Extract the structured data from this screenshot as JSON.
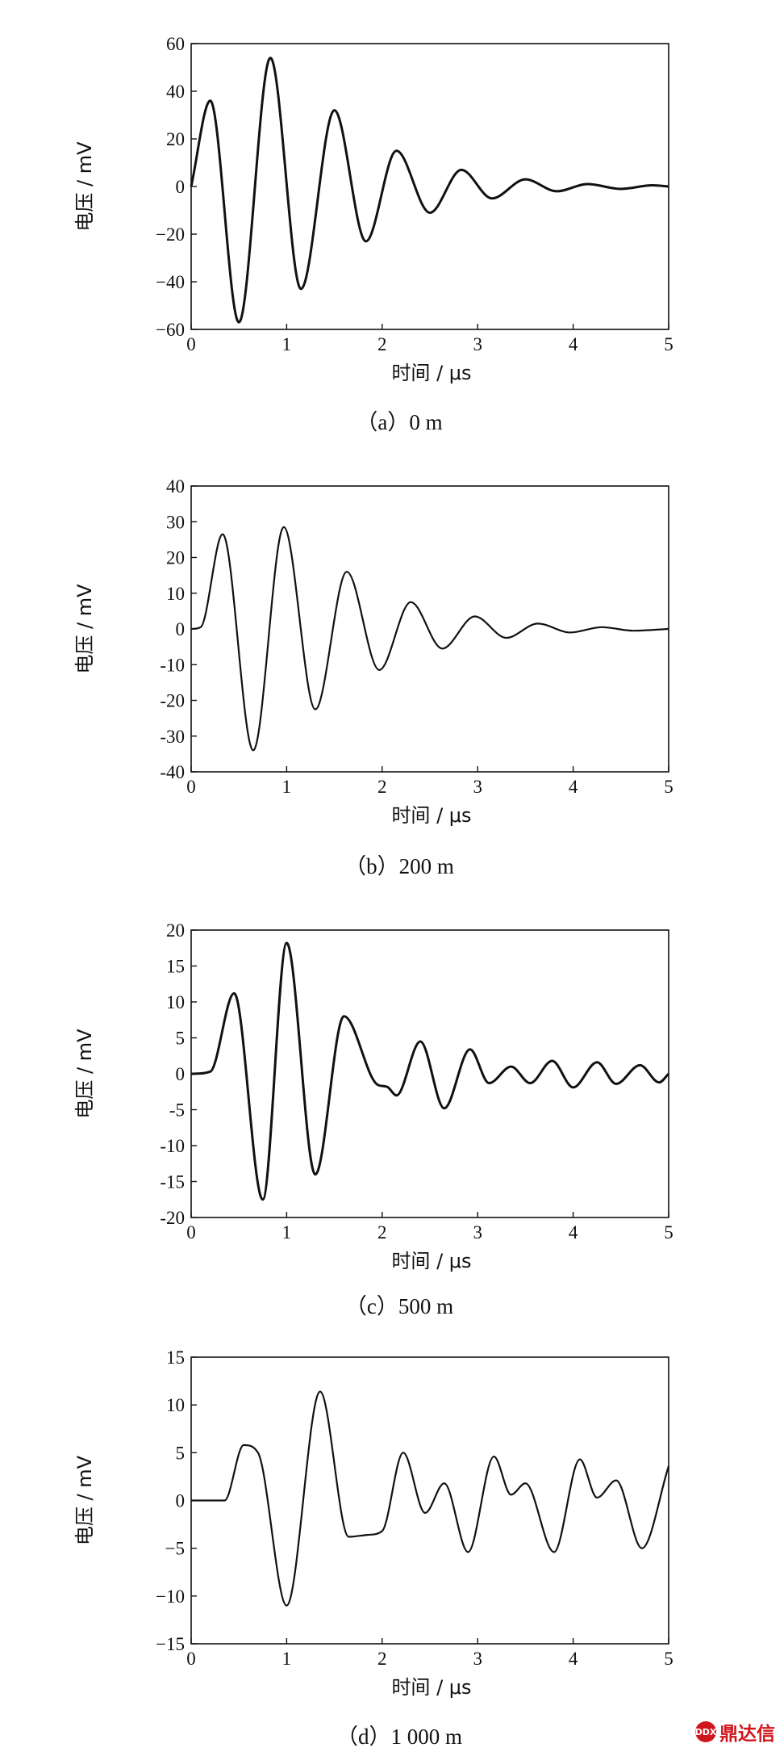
{
  "watermark": {
    "text": "鼎达信",
    "badge": "DDX"
  },
  "chart_data": [
    {
      "type": "line",
      "caption": "（a）0 m",
      "xlabel": "时间 / μs",
      "ylabel": "电压 / mV",
      "xlim": [
        0,
        5
      ],
      "ylim": [
        -60,
        60
      ],
      "xticks": [
        0,
        1,
        2,
        3,
        4,
        5
      ],
      "yticks": [
        -60,
        -40,
        -20,
        0,
        20,
        40,
        60
      ],
      "yticklabels": [
        "−60",
        "−40",
        "−20",
        "0",
        "20",
        "40",
        "60"
      ],
      "series": [
        {
          "x": [
            0,
            0.2,
            0.5,
            0.83,
            1.15,
            1.5,
            1.83,
            2.15,
            2.5,
            2.83,
            3.15,
            3.5,
            3.83,
            4.15,
            4.5,
            4.83,
            5
          ],
          "values": [
            0,
            36,
            -57,
            54,
            -43,
            32,
            -23,
            15,
            -11,
            7,
            -5,
            3,
            -2,
            1,
            -1,
            0.5,
            0
          ]
        }
      ]
    },
    {
      "type": "line",
      "caption": "（b）200 m",
      "xlabel": "时间 / μs",
      "ylabel": "电压 / mV",
      "xlim": [
        0,
        5
      ],
      "ylim": [
        -40,
        40
      ],
      "xticks": [
        0,
        1,
        2,
        3,
        4,
        5
      ],
      "yticks": [
        -40,
        -30,
        -20,
        -10,
        0,
        10,
        20,
        30,
        40
      ],
      "yticklabels": [
        "-40",
        "-30",
        "-20",
        "-10",
        "0",
        "10",
        "20",
        "30",
        "40"
      ],
      "series": [
        {
          "x": [
            0,
            0.1,
            0.33,
            0.65,
            0.97,
            1.3,
            1.63,
            1.97,
            2.3,
            2.63,
            2.97,
            3.3,
            3.63,
            3.97,
            4.3,
            4.63,
            5
          ],
          "values": [
            0,
            0.5,
            26.5,
            -34,
            28.5,
            -22.5,
            16,
            -11.5,
            7.5,
            -5.5,
            3.5,
            -2.5,
            1.5,
            -1,
            0.5,
            -0.5,
            0
          ]
        }
      ]
    },
    {
      "type": "line",
      "caption": "（c）500 m",
      "xlabel": "时间 / μs",
      "ylabel": "电压 / mV",
      "xlim": [
        0,
        5
      ],
      "ylim": [
        -20,
        20
      ],
      "xticks": [
        0,
        1,
        2,
        3,
        4,
        5
      ],
      "yticks": [
        -20,
        -15,
        -10,
        -5,
        0,
        5,
        10,
        15,
        20
      ],
      "yticklabels": [
        "-20",
        "-15",
        "-10",
        "-5",
        "0",
        "5",
        "10",
        "15",
        "20"
      ],
      "series": [
        {
          "x": [
            0,
            0.2,
            0.45,
            0.75,
            1.0,
            1.3,
            1.6,
            1.95,
            2.05,
            2.15,
            2.4,
            2.65,
            2.92,
            3.12,
            3.35,
            3.55,
            3.78,
            4.0,
            4.25,
            4.45,
            4.7,
            4.9,
            5
          ],
          "values": [
            0,
            0.3,
            11.2,
            -17.5,
            18.2,
            -14,
            8,
            -1.5,
            -1.8,
            -3,
            4.5,
            -4.8,
            3.4,
            -1.3,
            1,
            -1.3,
            1.8,
            -1.9,
            1.6,
            -1.4,
            1.2,
            -1.2,
            0
          ]
        }
      ]
    },
    {
      "type": "line",
      "caption": "（d）1 000 m",
      "xlabel": "时间 / μs",
      "ylabel": "电压 / mV",
      "xlim": [
        0,
        5
      ],
      "ylim": [
        -15,
        15
      ],
      "xticks": [
        0,
        1,
        2,
        3,
        4,
        5
      ],
      "yticks": [
        -15,
        -10,
        -5,
        0,
        5,
        10,
        15
      ],
      "yticklabels": [
        "−15",
        "−10",
        "−5",
        "0",
        "5",
        "10",
        "15"
      ],
      "series": [
        {
          "x": [
            0,
            0.35,
            0.55,
            0.7,
            1.0,
            1.35,
            1.65,
            1.85,
            2.0,
            2.22,
            2.45,
            2.65,
            2.9,
            3.17,
            3.35,
            3.5,
            3.8,
            4.07,
            4.25,
            4.45,
            4.72,
            5
          ],
          "values": [
            0,
            0,
            5.8,
            5,
            -11,
            11.4,
            -3.8,
            -3.6,
            -3.2,
            5,
            -1.3,
            1.8,
            -5.4,
            4.6,
            0.6,
            1.8,
            -5.4,
            4.3,
            0.3,
            2.1,
            -5,
            3.6
          ]
        }
      ]
    }
  ]
}
